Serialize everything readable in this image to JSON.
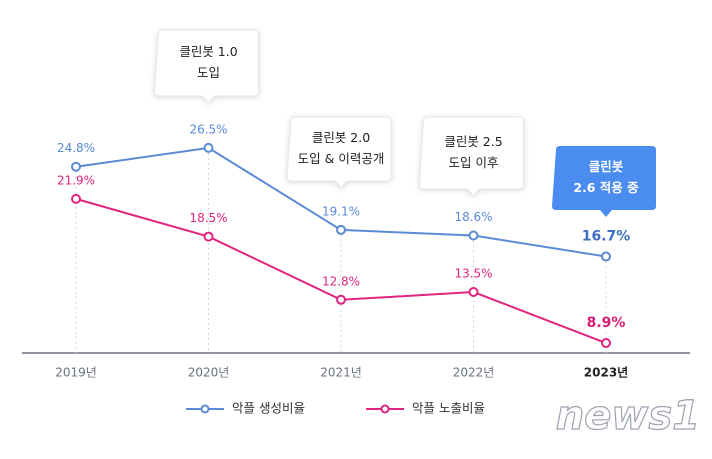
{
  "chart_data": {
    "type": "line",
    "categories": [
      "2019년",
      "2020년",
      "2021년",
      "2022년",
      "2023년"
    ],
    "series": [
      {
        "name": "악플 생성비율",
        "color": "#5b8ad6",
        "values": [
          24.8,
          26.5,
          19.1,
          18.6,
          16.7
        ],
        "value_labels": [
          "24.8%",
          "26.5%",
          "19.1%",
          "18.6%",
          "16.7%"
        ]
      },
      {
        "name": "악플 노출비율",
        "color": "#e0247f",
        "values": [
          21.9,
          18.5,
          12.8,
          13.5,
          8.9
        ],
        "value_labels": [
          "21.9%",
          "18.5%",
          "12.8%",
          "13.5%",
          "8.9%"
        ]
      }
    ],
    "ylim": [
      8,
      31
    ],
    "annotations": [
      {
        "category": 1,
        "lines": [
          "클린봇 1.0",
          "도입"
        ]
      },
      {
        "category": 2,
        "lines": [
          "클린봇 2.0",
          "도입 & 이력공개"
        ]
      },
      {
        "category": 3,
        "lines": [
          "클린봇 2.5",
          "도입 이후"
        ]
      },
      {
        "category": 4,
        "lines": [
          "클린봇",
          "2.6 적용 중"
        ],
        "highlight": true
      }
    ],
    "watermark": "news1"
  }
}
